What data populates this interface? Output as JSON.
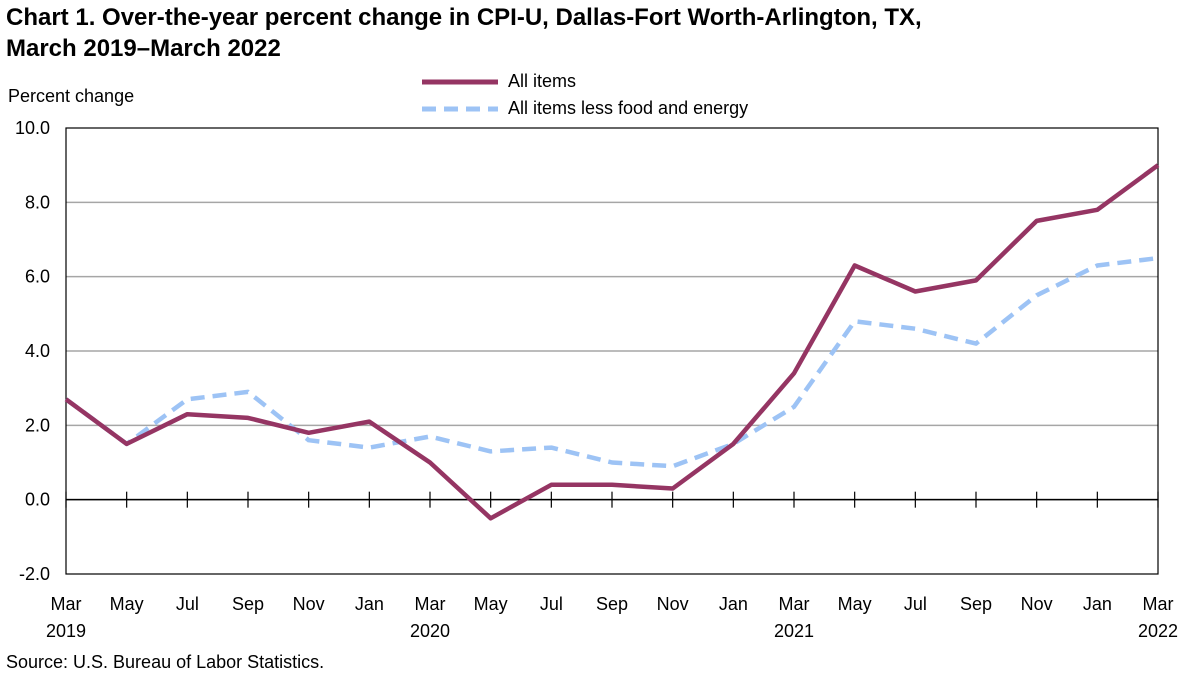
{
  "chart_data": {
    "type": "line",
    "title": "Chart 1. Over-the-year percent change in CPI-U, Dallas-Fort Worth-Arlington, TX,",
    "subtitle": "March 2019–March 2022",
    "ylabel": "Percent change",
    "xlabel": "",
    "source": "Source: U.S. Bureau of Labor Statistics.",
    "ylim": [
      -2.0,
      10.0
    ],
    "yticks": [
      "10.0",
      "8.0",
      "6.0",
      "4.0",
      "2.0",
      "0.0",
      "-2.0"
    ],
    "ytick_values": [
      10,
      8,
      6,
      4,
      2,
      0,
      -2
    ],
    "grid": true,
    "legend_position": "top-center",
    "categories": [
      "Mar 2019",
      "May 2019",
      "Jul 2019",
      "Sep 2019",
      "Nov 2019",
      "Jan 2020",
      "Mar 2020",
      "May 2020",
      "Jul 2020",
      "Sep 2020",
      "Nov 2020",
      "Jan 2021",
      "Mar 2021",
      "May 2021",
      "Jul 2021",
      "Sep 2021",
      "Nov 2021",
      "Jan 2022",
      "Mar 2022"
    ],
    "xtick_labels": [
      {
        "month": "Mar",
        "year": "2019"
      },
      {
        "month": "May",
        "year": ""
      },
      {
        "month": "Jul",
        "year": ""
      },
      {
        "month": "Sep",
        "year": ""
      },
      {
        "month": "Nov",
        "year": ""
      },
      {
        "month": "Jan",
        "year": ""
      },
      {
        "month": "Mar",
        "year": "2020"
      },
      {
        "month": "May",
        "year": ""
      },
      {
        "month": "Jul",
        "year": ""
      },
      {
        "month": "Sep",
        "year": ""
      },
      {
        "month": "Nov",
        "year": ""
      },
      {
        "month": "Jan",
        "year": ""
      },
      {
        "month": "Mar",
        "year": "2021"
      },
      {
        "month": "May",
        "year": ""
      },
      {
        "month": "Jul",
        "year": ""
      },
      {
        "month": "Sep",
        "year": ""
      },
      {
        "month": "Nov",
        "year": ""
      },
      {
        "month": "Jan",
        "year": ""
      },
      {
        "month": "Mar",
        "year": "2022"
      }
    ],
    "series": [
      {
        "name": "All items",
        "color": "#953563",
        "style": "solid",
        "values": [
          2.7,
          1.5,
          2.3,
          2.2,
          1.8,
          2.1,
          1.0,
          -0.5,
          0.4,
          0.4,
          0.3,
          1.5,
          3.4,
          6.3,
          5.6,
          5.9,
          7.5,
          7.8,
          9.0
        ]
      },
      {
        "name": "All items less food and energy",
        "color": "#9DC3F5",
        "style": "dashed",
        "values": [
          2.7,
          1.5,
          2.7,
          2.9,
          1.6,
          1.4,
          1.7,
          1.3,
          1.4,
          1.0,
          0.9,
          1.5,
          2.5,
          4.8,
          4.6,
          4.2,
          5.5,
          6.3,
          6.5
        ]
      }
    ]
  }
}
